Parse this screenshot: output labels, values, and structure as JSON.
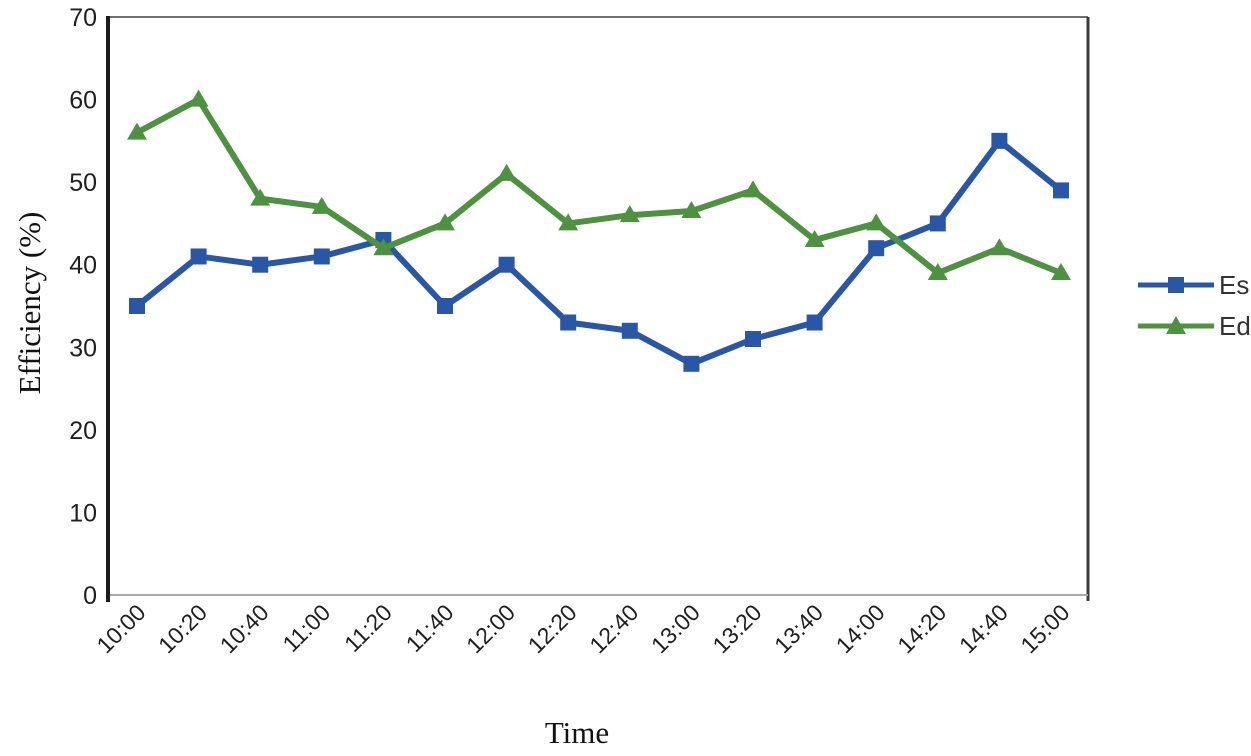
{
  "chart_data": {
    "type": "line",
    "title": "",
    "xlabel": "Time",
    "ylabel": "Efficiency (%)",
    "categories": [
      "10:00",
      "10:20",
      "10:40",
      "11:00",
      "11:20",
      "11:40",
      "12:00",
      "12:20",
      "12:40",
      "13:00",
      "13:20",
      "13:40",
      "14:00",
      "14:20",
      "14:40",
      "15:00"
    ],
    "series": [
      {
        "name": "Es",
        "marker": "square",
        "color": "#2A57A5",
        "values": [
          35,
          41,
          40,
          41,
          43,
          35,
          40,
          33,
          32,
          28,
          31,
          33,
          42,
          45,
          55,
          49
        ]
      },
      {
        "name": "Ed",
        "marker": "triangle",
        "color": "#4E9140",
        "values": [
          56,
          60,
          48,
          47,
          42,
          45,
          51,
          45,
          46,
          46.5,
          49,
          43,
          45,
          39,
          42,
          39
        ]
      }
    ],
    "ylim": [
      0,
      70
    ],
    "y_ticks": [
      0,
      10,
      20,
      30,
      40,
      50,
      60,
      70
    ],
    "grid": "off",
    "legend_position": "right",
    "colors": {
      "y_axis_line": "#1c1c1c",
      "x_axis_line": "#a9a9a9",
      "top_border": "#707070",
      "right_border": "#3c3c3c",
      "tick_label": "#1f1f1f"
    }
  }
}
